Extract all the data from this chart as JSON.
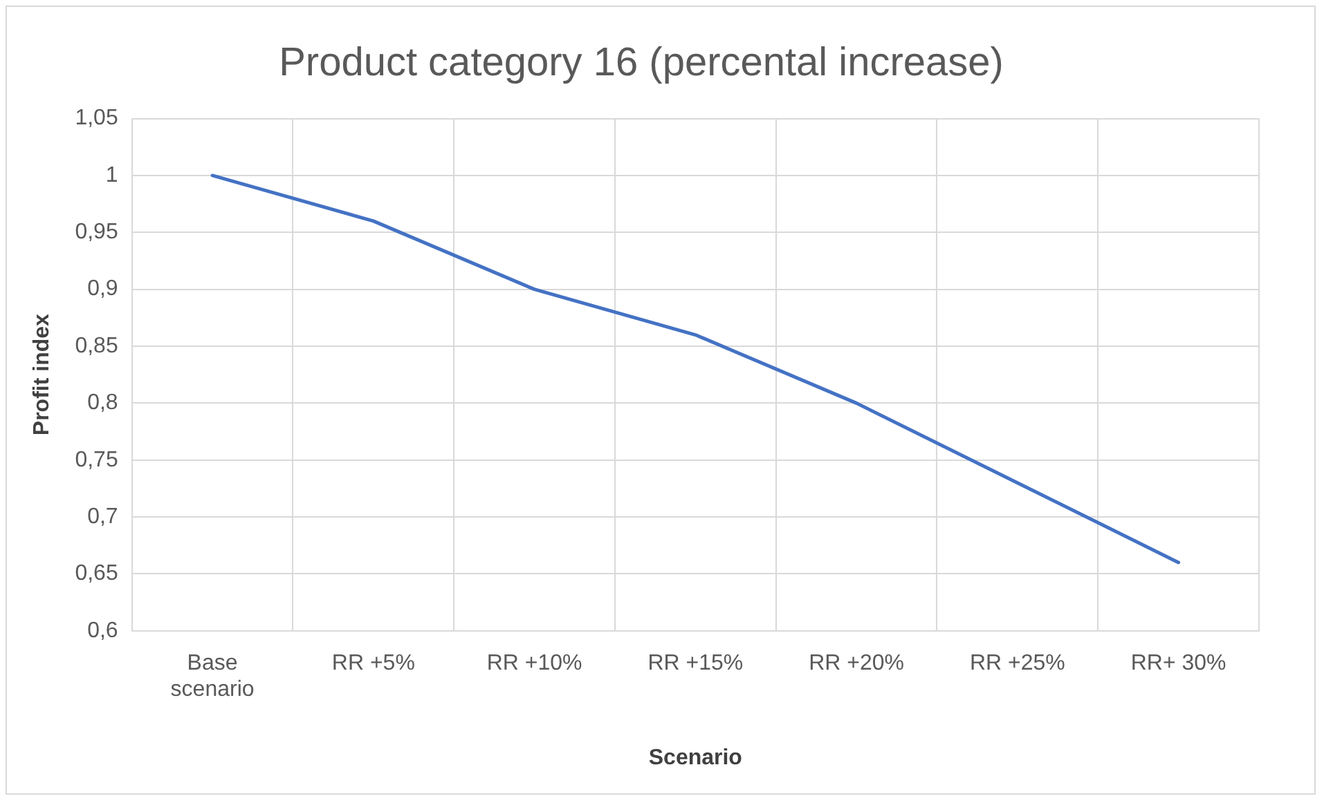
{
  "chart_data": {
    "type": "line",
    "title": "Product category 16 (percental increase)",
    "xlabel": "Scenario",
    "ylabel": "Profit index",
    "categories": [
      "Base scenario",
      "RR +5%",
      "RR +10%",
      "RR +15%",
      "RR +20%",
      "RR +25%",
      "RR+ 30%"
    ],
    "series": [
      {
        "color": "#4472c4",
        "values": [
          1.0,
          0.96,
          0.9,
          0.86,
          0.8,
          0.73,
          0.66
        ]
      }
    ],
    "ylim": [
      0.6,
      1.05
    ],
    "yticks": [
      {
        "value": 0.6,
        "label": "0,6"
      },
      {
        "value": 0.65,
        "label": "0,65"
      },
      {
        "value": 0.7,
        "label": "0,7"
      },
      {
        "value": 0.75,
        "label": "0,75"
      },
      {
        "value": 0.8,
        "label": "0,8"
      },
      {
        "value": 0.85,
        "label": "0,85"
      },
      {
        "value": 0.9,
        "label": "0,9"
      },
      {
        "value": 0.95,
        "label": "0,95"
      },
      {
        "value": 1,
        "label": "1"
      },
      {
        "value": 1.05,
        "label": "1,05"
      }
    ],
    "grid": true,
    "legend": false,
    "marker": "none",
    "line_style": "solid"
  }
}
